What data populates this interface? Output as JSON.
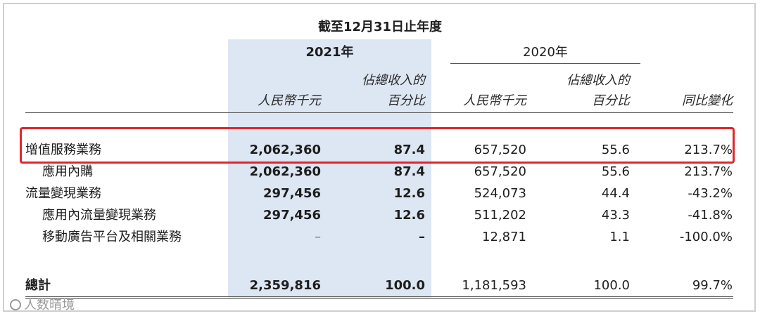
{
  "period_header": "截至12月31日止年度",
  "years": {
    "y2021": "2021年",
    "y2020": "2020年"
  },
  "col_headers": {
    "rmb_2021": "人民幣千元",
    "pct_2021_line1": "佔總收入的",
    "pct_2021_line2": "百分比",
    "rmb_2020": "人民幣千元",
    "pct_2020_line1": "佔總收入的",
    "pct_2020_line2": "百分比",
    "yoy": "同比變化"
  },
  "rows": [
    {
      "label": "增值服務業務",
      "v2021": "2,062,360",
      "p2021": "87.4",
      "v2020": "657,520",
      "p2020": "55.6",
      "yoy": "213.7%"
    },
    {
      "label": "應用內購",
      "v2021": "2,062,360",
      "p2021": "87.4",
      "v2020": "657,520",
      "p2020": "55.6",
      "yoy": "213.7%"
    },
    {
      "label": "流量變現業務",
      "v2021": "297,456",
      "p2021": "12.6",
      "v2020": "524,073",
      "p2020": "44.4",
      "yoy": "-43.2%"
    },
    {
      "label": "應用內流量變現業務",
      "v2021": "297,456",
      "p2021": "12.6",
      "v2020": "511,202",
      "p2020": "43.3",
      "yoy": "-41.8%"
    },
    {
      "label": "移動廣告平台及相關業務",
      "v2021": "–",
      "p2021": "–",
      "v2020": "12,871",
      "p2020": "1.1",
      "yoy": "-100.0%"
    }
  ],
  "total": {
    "label": "總計",
    "v2021": "2,359,816",
    "p2021": "100.0",
    "v2020": "1,181,593",
    "p2020": "100.0",
    "yoy": "99.7%"
  },
  "watermark": "人数晴境",
  "highlight_color": "#e0262b",
  "shade_color": "#dde6f3"
}
